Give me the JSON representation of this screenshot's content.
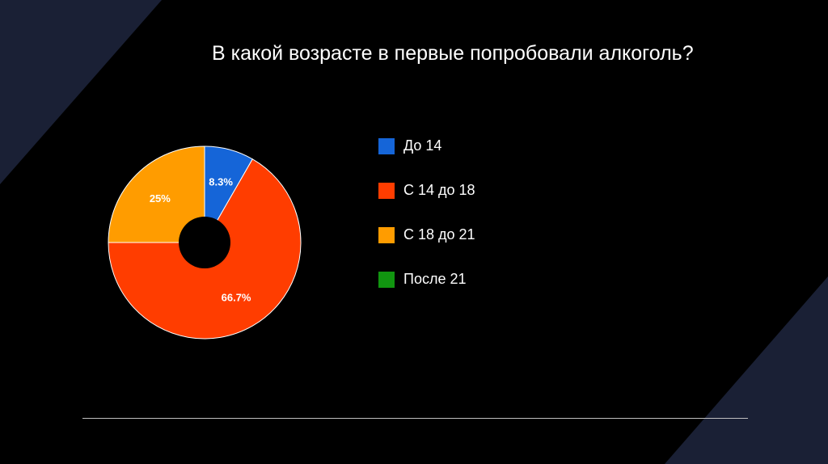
{
  "slide": {
    "title": "В какой возрасте в первые попробовали алкоголь?",
    "background_color": "#000000",
    "accent_color": "#1a2035",
    "divider_color": "#bfbfbf"
  },
  "chart_data": {
    "type": "pie",
    "title": "В какой возрасте в первые попробовали алкоголь?",
    "legend_position": "right",
    "donut_hole": true,
    "series": [
      {
        "name": "До 14",
        "value": 8.3,
        "label": "8.3%",
        "color": "#1565d8"
      },
      {
        "name": "С 14 до 18",
        "value": 66.7,
        "label": "66.7%",
        "color": "#ff3d00"
      },
      {
        "name": "С 18 до 21",
        "value": 25,
        "label": "25%",
        "color": "#ff9c00"
      },
      {
        "name": "После 21",
        "value": 0,
        "label": "",
        "color": "#119510"
      }
    ]
  }
}
